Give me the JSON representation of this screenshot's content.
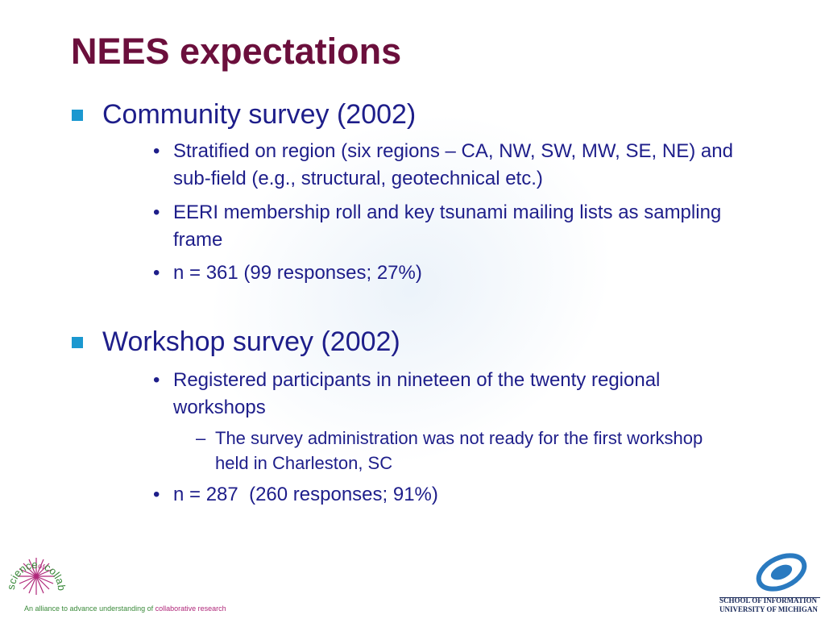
{
  "title": "NEES expectations",
  "sections": [
    {
      "heading": "Community survey (2002)",
      "items": [
        {
          "text": "Stratified on region (six regions – CA, NW, SW, MW, SE, NE) and sub-field (e.g., structural, geotechnical etc.)"
        },
        {
          "text": "EERI membership roll and key tsunami mailing lists as sampling frame"
        },
        {
          "text": "n = 361 (99 responses; 27%)"
        }
      ]
    },
    {
      "heading": "Workshop survey (2002)",
      "items": [
        {
          "text": "Registered participants in nineteen of the twenty regional workshops",
          "subitems": [
            "The survey administration was not ready for the first workshop held in Charleston, SC"
          ]
        },
        {
          "text": "n = 287  (260 responses; 91%)"
        }
      ]
    }
  ],
  "footer": {
    "left_logo": {
      "words": [
        "science",
        "of",
        "collaboratories"
      ],
      "tagline": "An alliance to advance understanding of",
      "tagline_highlight": "collaborative research"
    },
    "right_logo": {
      "line1": "SCHOOL OF INFORMATION",
      "line2": "UNIVERSITY OF MICHIGAN"
    }
  }
}
